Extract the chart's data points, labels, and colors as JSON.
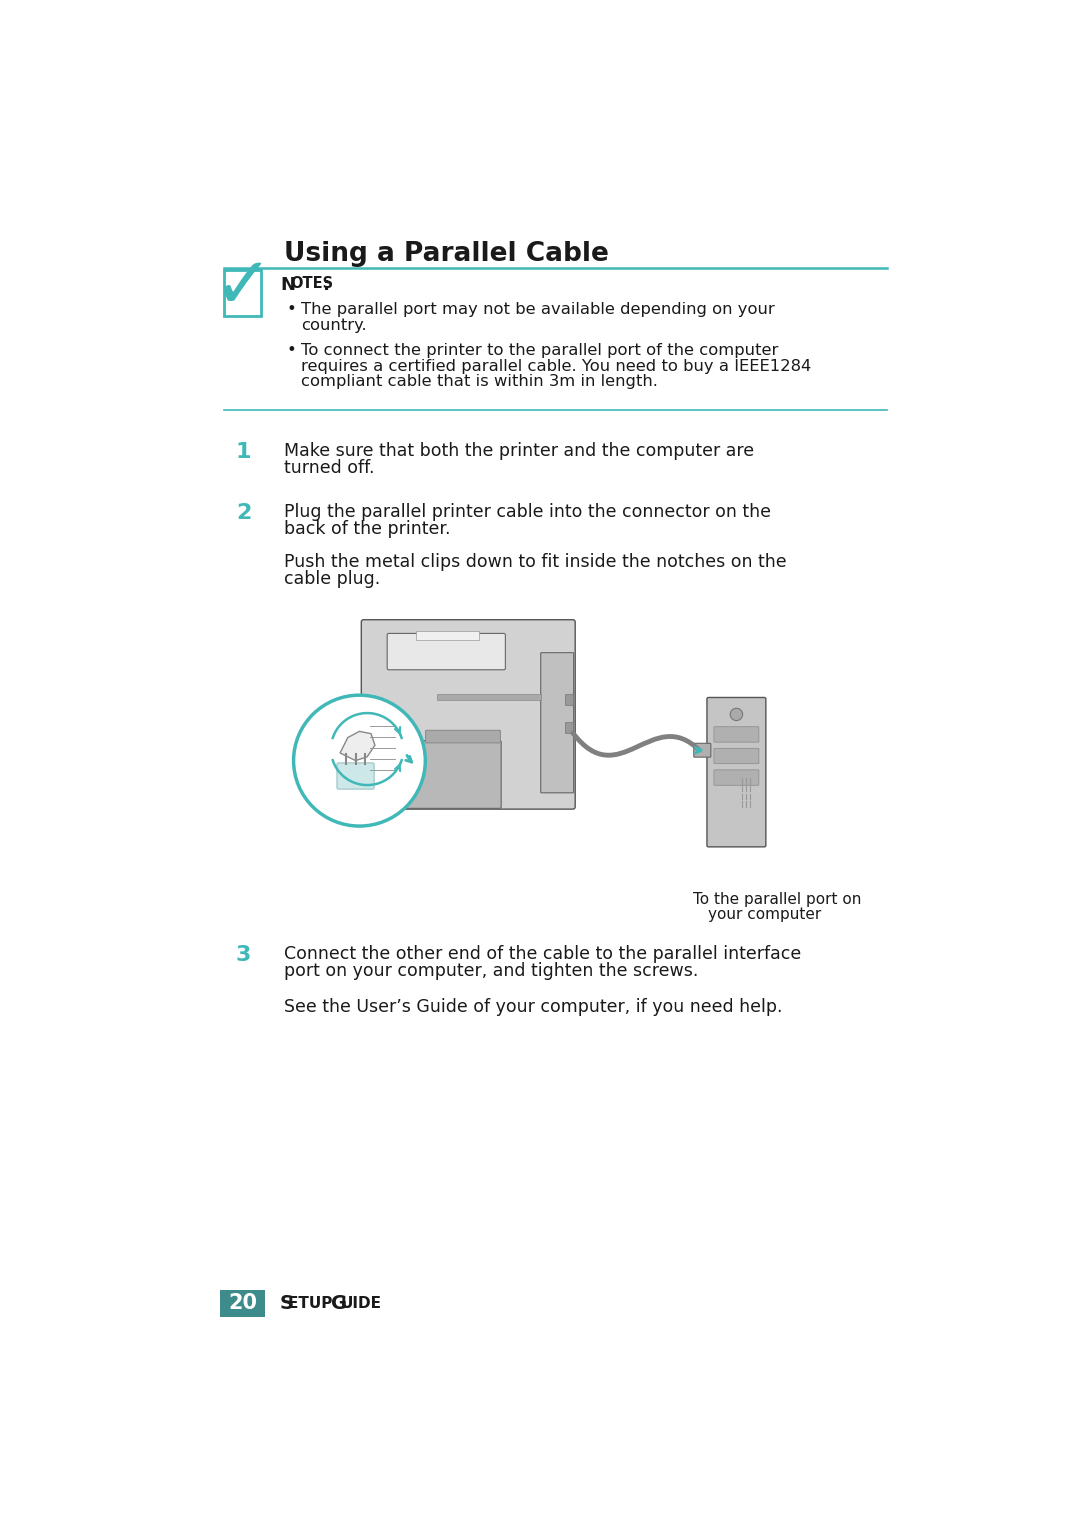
{
  "bg_color": "#ffffff",
  "teal_color": "#3d8b8b",
  "teal_light": "#40b8b8",
  "black": "#1a1a1a",
  "gray_light": "#d8d8d8",
  "gray_mid": "#b0b0b0",
  "gray_dark": "#888888",
  "title": "Using a Parallel Cable",
  "notes_label": "Notes",
  "note1_line1": "The parallel port may not be available depending on your",
  "note1_line2": "country.",
  "note2_line1": "To connect the printer to the parallel port of the computer",
  "note2_line2": "requires a certified parallel cable. You need to buy a IEEE1284",
  "note2_line3": "compliant cable that is within 3m in length.",
  "step1_num": "1",
  "step1_line1": "Make sure that both the printer and the computer are",
  "step1_line2": "turned off.",
  "step2_num": "2",
  "step2_line1": "Plug the parallel printer cable into the connector on the",
  "step2_line2": "back of the printer.",
  "step2b_line1": "Push the metal clips down to fit inside the notches on the",
  "step2b_line2": "cable plug.",
  "step3_num": "3",
  "step3_line1": "Connect the other end of the cable to the parallel interface",
  "step3_line2": "port on your computer, and tighten the screws.",
  "step3b_line1": "See the User’s Guide of your computer, if you need help.",
  "caption_line1": "To the parallel port on",
  "caption_line2": "your computer",
  "page_num": "20",
  "page_label": "S",
  "page_label2": "ETUP",
  "page_label3": " G",
  "page_label4": "UIDE",
  "fig_width": 10.8,
  "fig_height": 15.26
}
